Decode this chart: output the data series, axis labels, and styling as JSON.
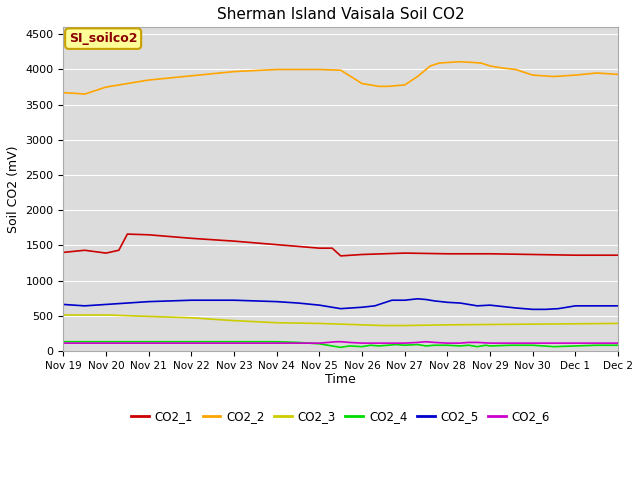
{
  "title": "Sherman Island Vaisala Soil CO2",
  "ylabel": "Soil CO2 (mV)",
  "xlabel": "Time",
  "annotation_label": "SI_soilco2",
  "xlim_days": [
    0,
    13
  ],
  "ylim": [
    0,
    4600
  ],
  "yticks": [
    0,
    500,
    1000,
    1500,
    2000,
    2500,
    3000,
    3500,
    4000,
    4500
  ],
  "xtick_labels": [
    "Nov 19",
    "Nov 20",
    "Nov 21",
    "Nov 22",
    "Nov 23",
    "Nov 24",
    "Nov 25",
    "Nov 26",
    "Nov 27",
    "Nov 28",
    "Nov 29",
    "Nov 30",
    "Dec 1",
    "Dec 2"
  ],
  "background_color": "#dcdcdc",
  "band_color_light": "#e8e8e8",
  "band_color_dark": "#d0d0d0",
  "legend_entries": [
    "CO2_1",
    "CO2_2",
    "CO2_3",
    "CO2_4",
    "CO2_5",
    "CO2_6"
  ],
  "line_colors": [
    "#cc0000",
    "#ffa500",
    "#cccc00",
    "#00dd00",
    "#0000cc",
    "#cc00cc"
  ],
  "series": {
    "CO2_1": {
      "x": [
        0,
        0.5,
        1.0,
        1.3,
        1.5,
        2,
        3,
        4,
        5,
        6,
        6.3,
        6.5,
        7,
        8,
        9,
        10,
        11,
        12,
        13
      ],
      "y": [
        1400,
        1430,
        1390,
        1430,
        1660,
        1650,
        1600,
        1560,
        1510,
        1460,
        1460,
        1350,
        1370,
        1390,
        1380,
        1380,
        1370,
        1360,
        1360
      ]
    },
    "CO2_2": {
      "x": [
        0,
        0.3,
        0.5,
        1,
        1.5,
        2,
        2.5,
        3,
        3.5,
        4,
        4.5,
        5,
        5.5,
        6,
        6.5,
        7,
        7.2,
        7.4,
        7.6,
        7.8,
        8,
        8.3,
        8.6,
        8.8,
        9,
        9.3,
        9.6,
        9.8,
        10,
        10.3,
        10.6,
        11,
        11.5,
        12,
        12.5,
        13
      ],
      "y": [
        3670,
        3660,
        3650,
        3750,
        3800,
        3850,
        3880,
        3910,
        3940,
        3970,
        3985,
        4000,
        4000,
        4000,
        3990,
        3800,
        3780,
        3760,
        3760,
        3770,
        3780,
        3900,
        4050,
        4090,
        4100,
        4110,
        4100,
        4090,
        4050,
        4020,
        4000,
        3920,
        3900,
        3920,
        3950,
        3930
      ]
    },
    "CO2_3": {
      "x": [
        0,
        1,
        2,
        3,
        4,
        5,
        6,
        7,
        7.5,
        8,
        9,
        10,
        11,
        12,
        13
      ],
      "y": [
        510,
        510,
        490,
        470,
        430,
        400,
        390,
        370,
        360,
        360,
        370,
        375,
        380,
        385,
        390
      ]
    },
    "CO2_4": {
      "x": [
        0,
        1,
        2,
        3,
        4,
        5,
        5.5,
        6,
        6.2,
        6.4,
        6.5,
        6.7,
        7,
        7.2,
        7.4,
        7.6,
        7.8,
        8,
        8.3,
        8.5,
        8.7,
        9,
        9.3,
        9.5,
        9.7,
        9.9,
        10,
        10.5,
        11,
        11.5,
        12,
        12.5,
        13
      ],
      "y": [
        130,
        130,
        130,
        130,
        130,
        130,
        120,
        100,
        80,
        60,
        50,
        70,
        60,
        80,
        70,
        80,
        90,
        80,
        90,
        70,
        80,
        80,
        70,
        80,
        60,
        80,
        70,
        80,
        80,
        60,
        70,
        80,
        80
      ]
    },
    "CO2_5": {
      "x": [
        0,
        0.5,
        1,
        1.5,
        2,
        3,
        4,
        5,
        5.5,
        6,
        6.3,
        6.5,
        7,
        7.3,
        7.5,
        7.7,
        8,
        8.3,
        8.5,
        8.7,
        9,
        9.3,
        9.5,
        9.7,
        10,
        10.3,
        10.6,
        11,
        11.3,
        11.6,
        12,
        12.5,
        13
      ],
      "y": [
        660,
        640,
        660,
        680,
        700,
        720,
        720,
        700,
        680,
        650,
        620,
        600,
        620,
        640,
        680,
        720,
        720,
        740,
        730,
        710,
        690,
        680,
        660,
        640,
        650,
        630,
        610,
        590,
        590,
        600,
        640,
        640,
        640
      ]
    },
    "CO2_6": {
      "x": [
        0,
        1,
        2,
        3,
        4,
        5,
        5.5,
        6,
        6.2,
        6.4,
        6.5,
        6.7,
        7,
        7.2,
        7.5,
        7.8,
        8,
        8.3,
        8.5,
        8.7,
        9,
        9.3,
        9.5,
        9.7,
        10,
        10.5,
        11,
        12,
        13
      ],
      "y": [
        110,
        110,
        110,
        110,
        110,
        110,
        110,
        110,
        120,
        130,
        130,
        120,
        110,
        110,
        110,
        110,
        110,
        120,
        130,
        120,
        110,
        110,
        120,
        120,
        110,
        110,
        110,
        110,
        110
      ]
    }
  }
}
